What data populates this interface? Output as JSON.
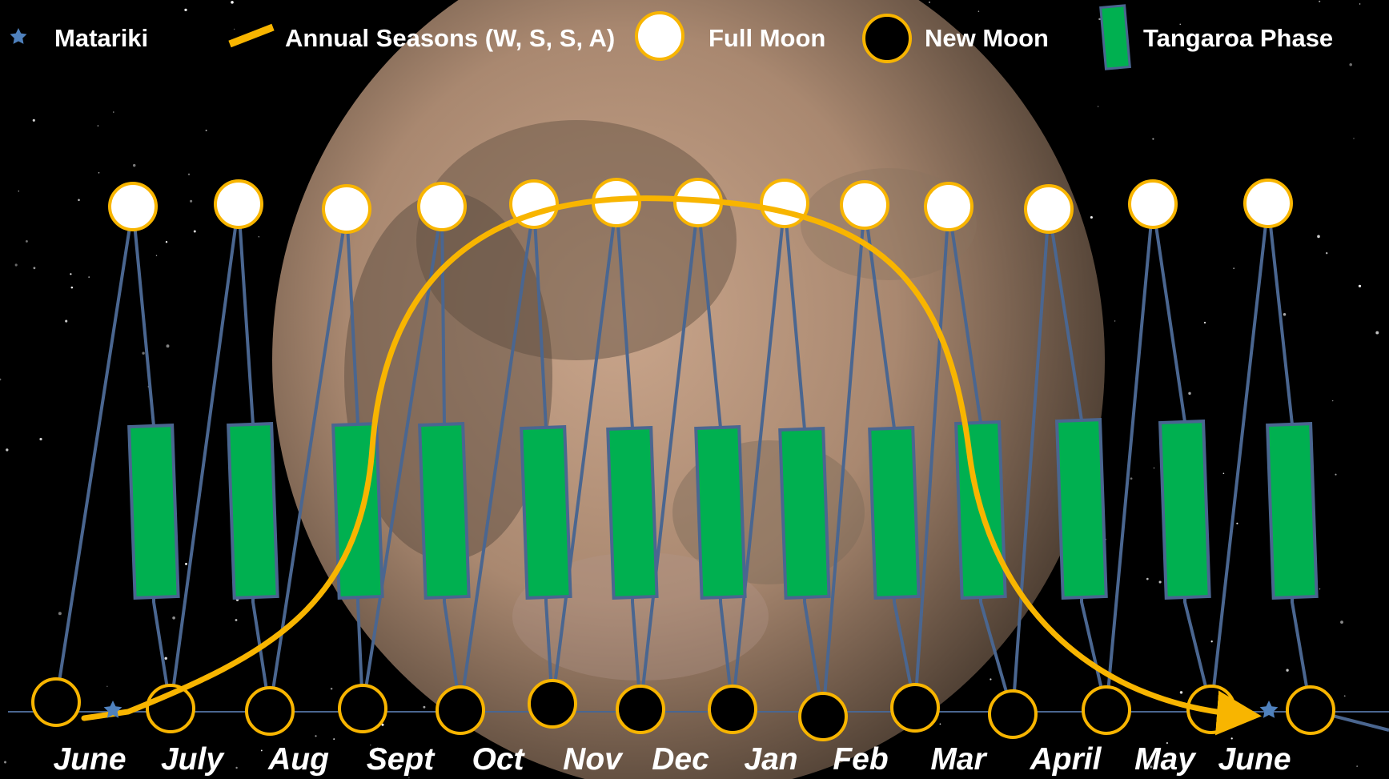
{
  "colors": {
    "background": "#000000",
    "moon_light": "#c9a58b",
    "moon_dark": "#6d5a48",
    "line": "#4a6690",
    "gold": "#f8b500",
    "green": "#00b050",
    "full_moon_fill": "#ffffff",
    "new_moon_fill": "#000000",
    "star": "#4f81bd"
  },
  "legend": [
    {
      "key": "matariki",
      "label": "Matariki",
      "icon": "star-icon"
    },
    {
      "key": "seasons",
      "label": "Annual Seasons (W, S, S, A)",
      "icon": "gold-line-icon"
    },
    {
      "key": "full",
      "label": "Full Moon",
      "icon": "full-moon-icon"
    },
    {
      "key": "new",
      "label": "New Moon",
      "icon": "new-moon-icon"
    },
    {
      "key": "tangaroa",
      "label": "Tangaroa Phase",
      "icon": "green-bar-icon"
    }
  ],
  "months": [
    "June",
    "July",
    "Aug",
    "Sept",
    "Oct",
    "Nov",
    "Dec",
    "Jan",
    "Feb",
    "Mar",
    "April",
    "May",
    "June"
  ],
  "lunar_cycles": 13
}
